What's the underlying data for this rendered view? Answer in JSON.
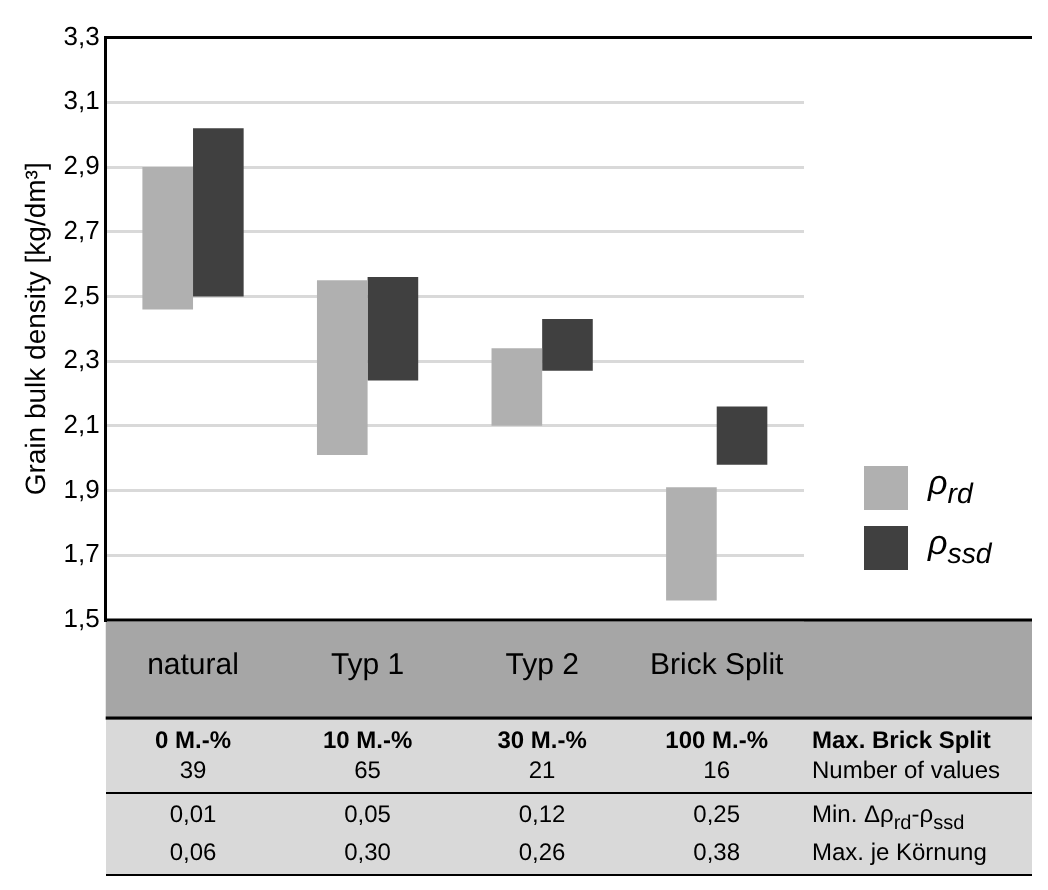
{
  "chart_data": {
    "type": "bar",
    "ylabel": "Grain bulk density [kg/dm³]",
    "categories": [
      "natural",
      "Typ 1",
      "Typ 2",
      "Brick Split"
    ],
    "series": [
      {
        "name": "ρ$_{rd}$",
        "color": "#b0b0b0",
        "base": [
          2.46,
          2.01,
          2.1,
          1.56
        ],
        "values": [
          0.44,
          0.54,
          0.24,
          0.35
        ]
      },
      {
        "name": "ρ$_{ssd}$",
        "color": "#404040",
        "base": [
          2.5,
          2.24,
          2.27,
          1.98
        ],
        "values": [
          0.52,
          0.32,
          0.16,
          0.18
        ]
      }
    ],
    "ylim": [
      1.5,
      3.3
    ],
    "yticks": [
      {
        "value": 1.5,
        "label": "1,5"
      },
      {
        "value": 1.7,
        "label": "1,7"
      },
      {
        "value": 1.9,
        "label": "1,9"
      },
      {
        "value": 2.1,
        "label": "2,1"
      },
      {
        "value": 2.3,
        "label": "2,3"
      },
      {
        "value": 2.5,
        "label": "2,5"
      },
      {
        "value": 2.7,
        "label": "2,7"
      },
      {
        "value": 2.9,
        "label": "2,9"
      },
      {
        "value": 3.1,
        "label": "3,1"
      },
      {
        "value": 3.3,
        "label": "3,3"
      }
    ],
    "grid": "y",
    "legend": "right",
    "annotations": [
      "0 M.-%",
      "10 M.-%",
      "30 M.-%",
      "100 M.-%",
      "Max. Brick Split",
      "39",
      "65",
      "21",
      "16",
      "Number of values",
      "0,01",
      "0,05",
      "0,12",
      "0,25",
      "Min.  Δρ$_{rd}$-ρ$_{ssd}$",
      "0,06",
      "0,30",
      "0,26",
      "0,38",
      "Max. je Körnung"
    ]
  }
}
